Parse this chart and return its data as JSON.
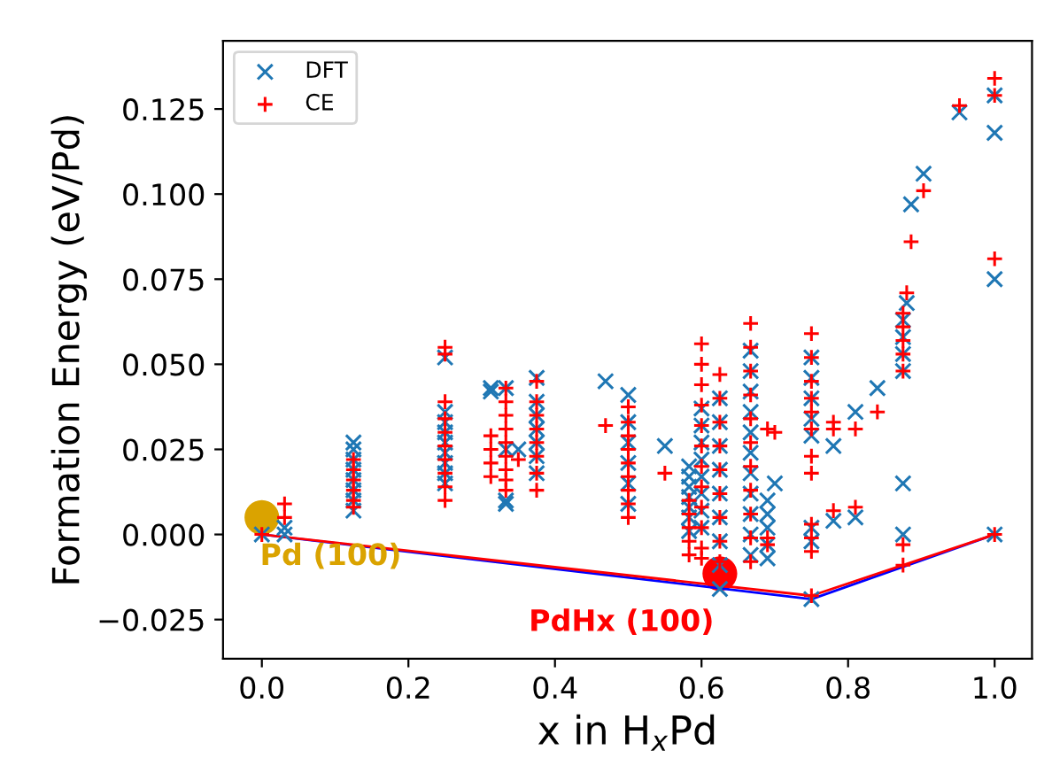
{
  "chart_data": {
    "type": "scatter",
    "xlabel": "x in H$_{x}$Pd",
    "ylabel": "Formation Energy (eV/Pd)",
    "xlim": [
      -0.053,
      1.051
    ],
    "ylim": [
      -0.0365,
      0.145
    ],
    "xticks": [
      {
        "value": 0,
        "label": "0.0"
      },
      {
        "value": 0.2,
        "label": "0.2"
      },
      {
        "value": 0.4,
        "label": "0.4"
      },
      {
        "value": 0.6,
        "label": "0.6"
      },
      {
        "value": 0.8,
        "label": "0.8"
      },
      {
        "value": 1,
        "label": "1.0"
      }
    ],
    "yticks": [
      {
        "value": -0.025,
        "label": "−0.025"
      },
      {
        "value": 0,
        "label": "0.000"
      },
      {
        "value": 0.025,
        "label": "0.025"
      },
      {
        "value": 0.05,
        "label": "0.050"
      },
      {
        "value": 0.075,
        "label": "0.075"
      },
      {
        "value": 0.1,
        "label": "0.100"
      },
      {
        "value": 0.125,
        "label": "0.125"
      }
    ],
    "grid": false,
    "legend": "top left",
    "series": [
      {
        "type": "line",
        "color": "#0000ff",
        "x": [
          0,
          0.75,
          1
        ],
        "values": [
          0,
          -0.019,
          0
        ]
      },
      {
        "type": "line",
        "color": "#ff0000",
        "x": [
          0,
          0.75,
          1
        ],
        "values": [
          0,
          -0.018,
          0
        ]
      },
      {
        "name": "DFT",
        "marker": "cross",
        "color": "#1f77b4",
        "x": [
          0,
          0.031,
          0.031,
          0.125,
          0.125,
          0.125,
          0.125,
          0.125,
          0.125,
          0.125,
          0.125,
          0.25,
          0.25,
          0.25,
          0.25,
          0.25,
          0.25,
          0.25,
          0.25,
          0.25,
          0.3125,
          0.3125,
          0.333,
          0.333,
          0.333,
          0.333,
          0.35,
          0.375,
          0.375,
          0.375,
          0.375,
          0.375,
          0.375,
          0.375,
          0.469,
          0.5,
          0.5,
          0.5,
          0.5,
          0.5,
          0.5,
          0.55,
          0.583,
          0.583,
          0.583,
          0.583,
          0.583,
          0.583,
          0.583,
          0.6,
          0.6,
          0.6,
          0.6,
          0.6,
          0.6,
          0.6,
          0.6,
          0.625,
          0.625,
          0.625,
          0.625,
          0.625,
          0.625,
          0.625,
          0.625,
          0.625,
          0.667,
          0.667,
          0.667,
          0.667,
          0.667,
          0.667,
          0.667,
          0.667,
          0.667,
          0.667,
          0.667,
          0.69,
          0.69,
          0.69,
          0.69,
          0.69,
          0.7,
          0.75,
          0.75,
          0.75,
          0.75,
          0.75,
          0.75,
          0.75,
          0.75,
          0.78,
          0.78,
          0.81,
          0.81,
          0.84,
          0.875,
          0.875,
          0.875,
          0.875,
          0.875,
          0.875,
          0.88,
          0.886,
          0.903,
          0.952,
          1,
          1,
          1,
          1
        ],
        "values": [
          0,
          0.002,
          0.0,
          0.027,
          0.025,
          0.022,
          0.019,
          0.016,
          0.013,
          0.01,
          0.007,
          0.052,
          0.036,
          0.033,
          0.03,
          0.027,
          0.024,
          0.021,
          0.018,
          0.015,
          0.043,
          0.042,
          0.043,
          0.025,
          0.009,
          0.01,
          0.025,
          0.046,
          0.039,
          0.035,
          0.031,
          0.027,
          0.023,
          0.018,
          0.045,
          0.041,
          0.033,
          0.027,
          0.021,
          0.015,
          0.009,
          0.026,
          0.02,
          0.017,
          0.014,
          0.011,
          0.008,
          0.005,
          0.001,
          0.037,
          0.032,
          0.027,
          0.022,
          0.017,
          0.012,
          0.007,
          0.002,
          0.04,
          0.033,
          0.026,
          0.019,
          0.012,
          0.005,
          -0.002,
          -0.009,
          -0.016,
          0.054,
          0.048,
          0.042,
          0.036,
          0.03,
          0.024,
          0.018,
          0.012,
          0.006,
          0.0,
          -0.006,
          0.01,
          0.006,
          0.002,
          -0.003,
          -0.007,
          0.015,
          0.052,
          0.046,
          0.04,
          0.034,
          0.029,
          0.002,
          -0.002,
          -0.019,
          0.026,
          0.004,
          0.036,
          0.005,
          0.043,
          0.063,
          0.058,
          0.053,
          0.048,
          0.015,
          0.0,
          0.068,
          0.097,
          0.106,
          0.124,
          0.129,
          0.118,
          0.075,
          0.0
        ]
      },
      {
        "name": "CE",
        "marker": "plus",
        "color": "#ff0000",
        "x": [
          0,
          0.031,
          0.031,
          0.125,
          0.125,
          0.125,
          0.125,
          0.125,
          0.125,
          0.25,
          0.25,
          0.25,
          0.25,
          0.25,
          0.25,
          0.25,
          0.25,
          0.25,
          0.25,
          0.3125,
          0.3125,
          0.3125,
          0.3125,
          0.333,
          0.333,
          0.333,
          0.333,
          0.333,
          0.333,
          0.333,
          0.333,
          0.333,
          0.35,
          0.375,
          0.375,
          0.375,
          0.375,
          0.375,
          0.375,
          0.375,
          0.375,
          0.469,
          0.5,
          0.5,
          0.5,
          0.5,
          0.5,
          0.5,
          0.5,
          0.5,
          0.5,
          0.55,
          0.583,
          0.583,
          0.583,
          0.583,
          0.583,
          0.6,
          0.6,
          0.6,
          0.6,
          0.6,
          0.6,
          0.6,
          0.6,
          0.6,
          0.6,
          0.6,
          0.6,
          0.625,
          0.625,
          0.625,
          0.625,
          0.625,
          0.625,
          0.625,
          0.625,
          0.625,
          0.667,
          0.667,
          0.667,
          0.667,
          0.667,
          0.667,
          0.667,
          0.667,
          0.667,
          0.667,
          0.667,
          0.69,
          0.69,
          0.69,
          0.7,
          0.75,
          0.75,
          0.75,
          0.75,
          0.75,
          0.75,
          0.75,
          0.75,
          0.75,
          0.75,
          0.75,
          0.75,
          0.78,
          0.78,
          0.78,
          0.81,
          0.81,
          0.84,
          0.875,
          0.875,
          0.875,
          0.875,
          0.875,
          0.875,
          0.875,
          0.88,
          0.886,
          0.903,
          0.952,
          1,
          1,
          1,
          1
        ],
        "values": [
          0.0,
          0.009,
          0.005,
          0.022,
          0.019,
          0.016,
          0.013,
          0.01,
          0.008,
          0.055,
          0.053,
          0.039,
          0.034,
          0.03,
          0.026,
          0.022,
          0.018,
          0.014,
          0.01,
          0.029,
          0.025,
          0.021,
          0.017,
          0.043,
          0.039,
          0.035,
          0.031,
          0.027,
          0.023,
          0.019,
          0.016,
          0.013,
          0.022,
          0.045,
          0.039,
          0.035,
          0.031,
          0.027,
          0.023,
          0.018,
          0.013,
          0.032,
          0.0375,
          0.033,
          0.029,
          0.025,
          0.021,
          0.017,
          0.013,
          0.009,
          0.005,
          0.018,
          0.01,
          0.006,
          0.002,
          -0.002,
          -0.006,
          0.056,
          0.05,
          0.044,
          0.038,
          0.032,
          0.026,
          0.02,
          0.014,
          0.008,
          0.002,
          -0.004,
          -0.007,
          0.047,
          0.04,
          0.033,
          0.026,
          0.019,
          0.012,
          0.005,
          -0.002,
          -0.008,
          0.062,
          0.055,
          0.048,
          0.041,
          0.034,
          0.027,
          0.02,
          0.013,
          0.006,
          -0.001,
          -0.008,
          0.031,
          -0.003,
          -0.001,
          0.03,
          0.059,
          0.052,
          0.045,
          0.04,
          0.036,
          0.031,
          0.023,
          0.018,
          0.003,
          -0.001,
          -0.005,
          -0.018,
          0.033,
          0.031,
          0.007,
          0.031,
          0.008,
          0.036,
          0.065,
          0.061,
          0.057,
          0.053,
          0.048,
          -0.003,
          -0.009,
          0.071,
          0.086,
          0.101,
          0.126,
          0.134,
          0.129,
          0.081,
          0.0
        ]
      },
      {
        "name": "Pd (100)",
        "marker": "circle",
        "color": "#daa300",
        "x": [
          0
        ],
        "values": [
          0.005
        ]
      },
      {
        "name": "PdHx (100)",
        "marker": "circle",
        "color": "#ff0000",
        "x": [
          0.625
        ],
        "values": [
          -0.0115
        ]
      }
    ]
  }
}
